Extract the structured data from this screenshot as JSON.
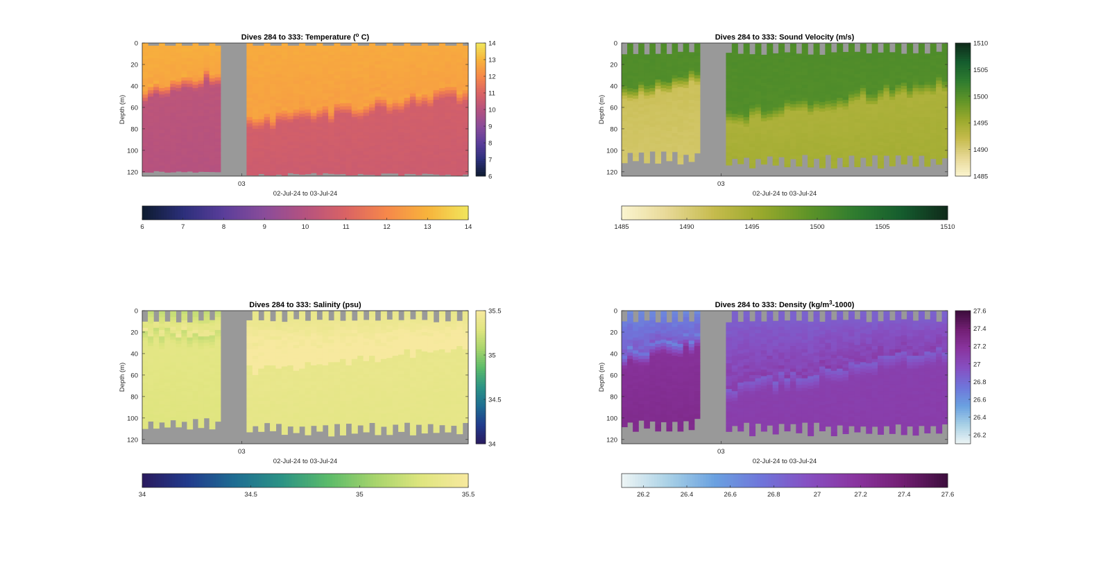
{
  "figure": {
    "background": "#ffffff",
    "gap_color": "#999999",
    "frame_color": "#262626"
  },
  "chart_data": [
    {
      "type": "heatmap",
      "variable": "temperature",
      "title_main": "Dives 284 to 333: Temperature (",
      "title_sup": "o",
      "title_end": " C)",
      "ylabel": "Depth (m)",
      "xlabel": "02-Jul-24 to 03-Jul-24",
      "xtick": "03",
      "ylim": [
        0,
        124
      ],
      "yticks": [
        0,
        20,
        40,
        60,
        80,
        100,
        120
      ],
      "value_range": [
        6,
        14
      ],
      "colorbar_ticks": [
        "6",
        "7",
        "8",
        "9",
        "10",
        "11",
        "12",
        "13",
        "14"
      ],
      "colormap": [
        "#0d1b2e",
        "#2b2f7a",
        "#5a3d9a",
        "#8a4c9a",
        "#b5527f",
        "#da6364",
        "#f6884a",
        "#f7b33c",
        "#f1e65c"
      ],
      "bottom_depth_left": 119,
      "bottom_depth_right": 121,
      "surface_band": 3,
      "top_region": "scalloped",
      "segments": [
        {
          "profiles": 14,
          "surface_value": 12.9,
          "interface_start": 45,
          "interface_end": 28,
          "deep_value": 10.2,
          "deep_lower": 10.0
        },
        {
          "profiles": 38,
          "surface_value": 12.8,
          "interface_start": 75,
          "interface_end": 45,
          "deep_value": 10.8,
          "deep_lower": 10.6
        }
      ]
    },
    {
      "type": "heatmap",
      "variable": "sound_velocity",
      "title_main": "Dives 284 to 333: Sound Velocity (m/s)",
      "title_sup": "",
      "title_end": "",
      "ylabel": "Depth (m)",
      "xlabel": "02-Jul-24 to 03-Jul-24",
      "xtick": "03",
      "ylim": [
        0,
        124
      ],
      "yticks": [
        0,
        20,
        40,
        60,
        80,
        100,
        120
      ],
      "value_range": [
        1485,
        1510
      ],
      "colorbar_ticks": [
        "1485",
        "1490",
        "1495",
        "1500",
        "1505",
        "1510"
      ],
      "colormap": [
        "#fbf5d0",
        "#e7d895",
        "#c5bb4c",
        "#99a92c",
        "#5f9428",
        "#2f7c2f",
        "#155d2e",
        "#0f2a1a"
      ],
      "bottom_depth_left": 108,
      "bottom_depth_right": 112,
      "surface_band": 10,
      "top_region": "comb",
      "segments": [
        {
          "profiles": 14,
          "surface_value": 1500.5,
          "interface_start": 48,
          "interface_end": 30,
          "deep_value": 1491.5,
          "deep_lower": 1490.5
        },
        {
          "profiles": 38,
          "surface_value": 1500.5,
          "interface_start": 70,
          "interface_end": 35,
          "deep_value": 1494.0,
          "deep_lower": 1495.0
        }
      ]
    },
    {
      "type": "heatmap",
      "variable": "salinity",
      "title_main": "Dives 284 to 333: Salinity (psu)",
      "title_sup": "",
      "title_end": "",
      "ylabel": "Depth (m)",
      "xlabel": "02-Jul-24 to 03-Jul-24",
      "xtick": "03",
      "ylim": [
        0,
        124
      ],
      "yticks": [
        0,
        20,
        40,
        60,
        80,
        100,
        120
      ],
      "value_range": [
        34,
        35.5
      ],
      "colorbar_ticks": [
        "34",
        "34.5",
        "35",
        "35.5"
      ],
      "colormap": [
        "#2a1a5e",
        "#213b8c",
        "#1e6d92",
        "#2c9385",
        "#5bbb6a",
        "#a7d46c",
        "#dfe57f",
        "#f7e99f"
      ],
      "bottom_depth_left": 108,
      "bottom_depth_right": 112,
      "surface_band": 10,
      "top_region": "comb",
      "segments": [
        {
          "profiles": 14,
          "surface_value": 35.18,
          "interface_start": 25,
          "interface_end": 25,
          "deep_value": 35.33,
          "deep_lower": 35.28
        },
        {
          "profiles": 38,
          "surface_value": 35.36,
          "interface_start": 60,
          "interface_end": 40,
          "deep_value": 35.37,
          "deep_lower": 35.33
        }
      ]
    },
    {
      "type": "heatmap",
      "variable": "density",
      "title_main": "Dives 284 to 333: Density (kg/m",
      "title_sup": "3",
      "title_end": "-1000)",
      "ylabel": "Depth (m)",
      "xlabel": "02-Jul-24 to 03-Jul-24",
      "xtick": "03",
      "ylim": [
        0,
        124
      ],
      "yticks": [
        0,
        20,
        40,
        60,
        80,
        100,
        120
      ],
      "value_range": [
        26.1,
        27.6
      ],
      "colorbar_ticks": [
        "26.2",
        "26.4",
        "26.6",
        "26.8",
        "27",
        "27.2",
        "27.4",
        "27.6"
      ],
      "colormap": [
        "#eef5f5",
        "#a9d1e6",
        "#6aa1e0",
        "#6f75da",
        "#8650c2",
        "#8a35a0",
        "#731f74",
        "#3c0d3c"
      ],
      "bottom_depth_left": 108,
      "bottom_depth_right": 112,
      "surface_band": 10,
      "top_region": "comb",
      "segments": [
        {
          "profiles": 14,
          "surface_value": 26.65,
          "interface_start": 45,
          "interface_end": 28,
          "deep_value": 27.2,
          "deep_lower": 27.28
        },
        {
          "profiles": 38,
          "surface_value": 26.85,
          "interface_start": 75,
          "interface_end": 40,
          "deep_value": 27.08,
          "deep_lower": 27.12
        }
      ]
    }
  ]
}
